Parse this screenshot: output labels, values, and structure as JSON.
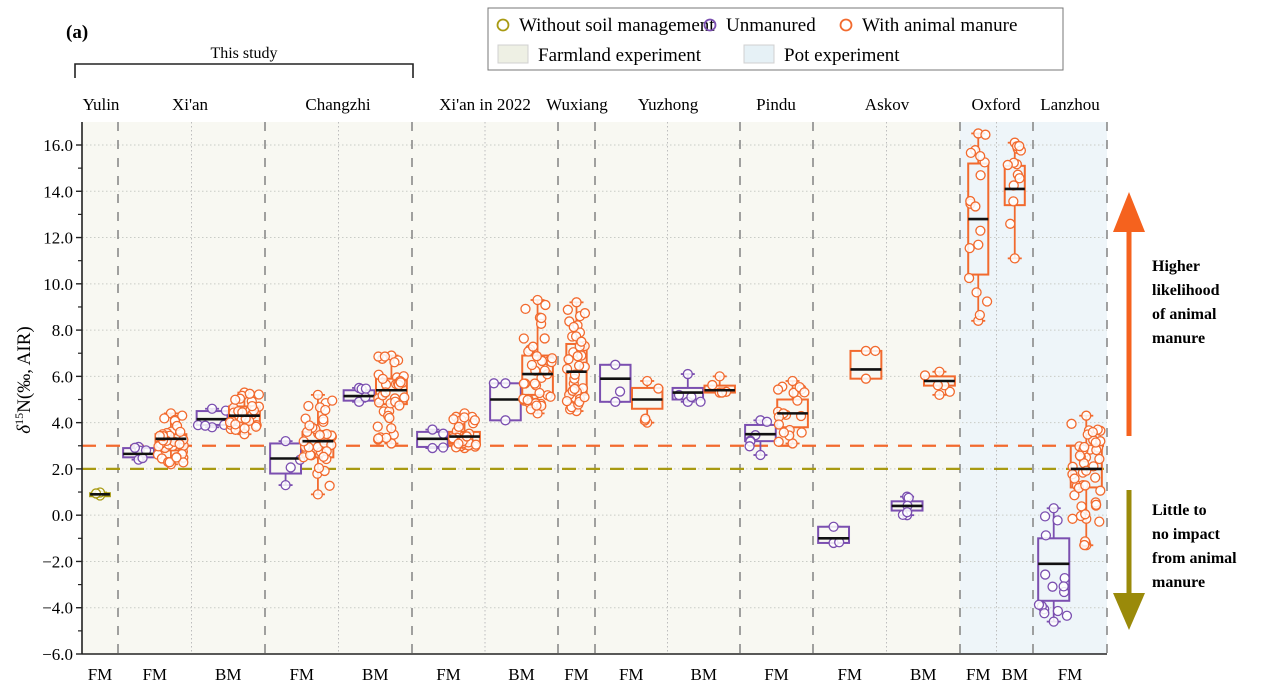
{
  "panel_label": "(a)",
  "bracket_label": "This study",
  "legend": {
    "markers": [
      {
        "label": "Without soil management",
        "color": "#a89a12"
      },
      {
        "label": "Unmanured",
        "color": "#7b4fb0"
      },
      {
        "label": "With animal manure",
        "color": "#f26a2e"
      }
    ],
    "areas": [
      {
        "label": "Farmland experiment",
        "color": "#eef0e4"
      },
      {
        "label": "Pot experiment",
        "color": "#e6f1f6"
      }
    ]
  },
  "annotations": {
    "up": [
      "Higher",
      "likelihood",
      "of animal",
      "manure"
    ],
    "down": [
      "Little to",
      "no impact",
      "from animal",
      "manure"
    ],
    "up_color": "#f5621e",
    "down_color": "#9a8a0a"
  },
  "chart_data": {
    "type": "box",
    "title": "",
    "xlabel": "",
    "ylabel": "δ15N(‰, AIR)",
    "ylim": [
      -6.0,
      17.0
    ],
    "yticks": [
      "16.0",
      "14.0",
      "12.0",
      "10.0",
      "8.0",
      "6.0",
      "4.0",
      "2.0",
      "0.0",
      "−2.0",
      "−4.0",
      "−6.0"
    ],
    "ytick_values": [
      16,
      14,
      12,
      10,
      8,
      6,
      4,
      2,
      0,
      -2,
      -4,
      -6
    ],
    "reference_lines": [
      {
        "name": "manure-threshold",
        "value": 3.0,
        "color": "#f26a2e"
      },
      {
        "name": "soil-threshold",
        "value": 2.0,
        "color": "#a89a12"
      }
    ],
    "sites": [
      {
        "name": "Yulin",
        "experiment": "Farmland",
        "groups": [
          "FM"
        ]
      },
      {
        "name": "Xi'an",
        "experiment": "Farmland",
        "groups": [
          "FM",
          "BM"
        ]
      },
      {
        "name": "Changzhi",
        "experiment": "Farmland",
        "groups": [
          "FM",
          "BM"
        ]
      },
      {
        "name": "Xi'an in 2022",
        "experiment": "Farmland",
        "groups": [
          "FM",
          "BM"
        ]
      },
      {
        "name": "Wuxiang",
        "experiment": "Farmland",
        "groups": [
          "FM"
        ]
      },
      {
        "name": "Yuzhong",
        "experiment": "Farmland",
        "groups": [
          "FM",
          "BM"
        ]
      },
      {
        "name": "Pindu",
        "experiment": "Farmland",
        "groups": [
          "FM"
        ]
      },
      {
        "name": "Askov",
        "experiment": "Farmland",
        "groups": [
          "FM",
          "BM"
        ]
      },
      {
        "name": "Oxford",
        "experiment": "Pot",
        "groups": [
          "FM",
          "BM"
        ]
      },
      {
        "name": "Lanzhou",
        "experiment": "Pot",
        "groups": [
          "FM"
        ]
      }
    ],
    "boxes": [
      {
        "site": "Yulin",
        "group": "FM",
        "treatment": "Without soil management",
        "min": 0.85,
        "q1": 0.82,
        "median": 0.9,
        "q3": 0.95,
        "max": 0.98,
        "n": 3
      },
      {
        "site": "Xi'an",
        "group": "FM",
        "treatment": "Unmanured",
        "min": 2.4,
        "q1": 2.5,
        "median": 2.65,
        "q3": 2.9,
        "max": 2.95,
        "n": 6
      },
      {
        "site": "Xi'an",
        "group": "FM",
        "treatment": "With animal manure",
        "min": 2.2,
        "q1": 2.8,
        "median": 3.3,
        "q3": 3.5,
        "max": 4.4,
        "n": 36
      },
      {
        "site": "Xi'an",
        "group": "BM",
        "treatment": "Unmanured",
        "min": 3.8,
        "q1": 3.9,
        "median": 4.15,
        "q3": 4.5,
        "max": 4.6,
        "n": 6
      },
      {
        "site": "Xi'an",
        "group": "BM",
        "treatment": "With animal manure",
        "min": 3.5,
        "q1": 3.95,
        "median": 4.3,
        "q3": 4.7,
        "max": 5.3,
        "n": 32
      },
      {
        "site": "Changzhi",
        "group": "FM",
        "treatment": "Unmanured",
        "min": 1.3,
        "q1": 1.8,
        "median": 2.45,
        "q3": 3.1,
        "max": 3.2,
        "n": 4
      },
      {
        "site": "Changzhi",
        "group": "FM",
        "treatment": "With animal manure",
        "min": 0.9,
        "q1": 2.5,
        "median": 3.2,
        "q3": 3.6,
        "max": 5.2,
        "n": 38
      },
      {
        "site": "Changzhi",
        "group": "BM",
        "treatment": "Unmanured",
        "min": 4.9,
        "q1": 4.95,
        "median": 5.15,
        "q3": 5.4,
        "max": 5.5,
        "n": 5
      },
      {
        "site": "Changzhi",
        "group": "BM",
        "treatment": "With animal manure",
        "min": 3.1,
        "q1": 4.8,
        "median": 5.4,
        "q3": 5.9,
        "max": 6.9,
        "n": 38
      },
      {
        "site": "Xi'an in 2022",
        "group": "FM",
        "treatment": "Unmanured",
        "min": 2.9,
        "q1": 2.95,
        "median": 3.3,
        "q3": 3.6,
        "max": 3.7,
        "n": 4
      },
      {
        "site": "Xi'an in 2022",
        "group": "FM",
        "treatment": "With animal manure",
        "min": 2.9,
        "q1": 3.1,
        "median": 3.4,
        "q3": 3.6,
        "max": 4.4,
        "n": 32
      },
      {
        "site": "Xi'an in 2022",
        "group": "BM",
        "treatment": "Unmanured",
        "min": 4.1,
        "q1": 4.1,
        "median": 5.0,
        "q3": 5.7,
        "max": 5.7,
        "n": 3
      },
      {
        "site": "Xi'an in 2022",
        "group": "BM",
        "treatment": "With animal manure",
        "min": 4.4,
        "q1": 5.2,
        "median": 6.1,
        "q3": 6.9,
        "max": 9.3,
        "n": 42
      },
      {
        "site": "Wuxiang",
        "group": "FM",
        "treatment": "With animal manure",
        "min": 4.5,
        "q1": 5.2,
        "median": 6.2,
        "q3": 7.4,
        "max": 9.2,
        "n": 40
      },
      {
        "site": "Yuzhong",
        "group": "FM",
        "treatment": "Unmanured",
        "min": 4.9,
        "q1": 4.9,
        "median": 5.9,
        "q3": 6.5,
        "max": 6.5,
        "n": 3
      },
      {
        "site": "Yuzhong",
        "group": "FM",
        "treatment": "With animal manure",
        "min": 4.0,
        "q1": 4.6,
        "median": 5.0,
        "q3": 5.5,
        "max": 5.8,
        "n": 5
      },
      {
        "site": "Yuzhong",
        "group": "BM",
        "treatment": "Unmanured",
        "min": 4.9,
        "q1": 5.0,
        "median": 5.3,
        "q3": 5.5,
        "max": 6.1,
        "n": 5
      },
      {
        "site": "Yuzhong",
        "group": "BM",
        "treatment": "With animal manure",
        "min": 5.3,
        "q1": 5.3,
        "median": 5.4,
        "q3": 5.6,
        "max": 6.0,
        "n": 5
      },
      {
        "site": "Pindu",
        "group": "FM",
        "treatment": "Unmanured",
        "min": 2.6,
        "q1": 3.2,
        "median": 3.5,
        "q3": 3.9,
        "max": 4.1,
        "n": 7
      },
      {
        "site": "Pindu",
        "group": "FM",
        "treatment": "With animal manure",
        "min": 3.1,
        "q1": 3.8,
        "median": 4.4,
        "q3": 5.0,
        "max": 5.8,
        "n": 20
      },
      {
        "site": "Askov",
        "group": "FM",
        "treatment": "Unmanured",
        "min": -1.2,
        "q1": -1.2,
        "median": -1.0,
        "q3": -0.5,
        "max": -0.5,
        "n": 3
      },
      {
        "site": "Askov",
        "group": "FM",
        "treatment": "With animal manure",
        "min": 5.9,
        "q1": 5.9,
        "median": 6.3,
        "q3": 7.1,
        "max": 7.1,
        "n": 3
      },
      {
        "site": "Askov",
        "group": "BM",
        "treatment": "Unmanured",
        "min": 0.0,
        "q1": 0.2,
        "median": 0.4,
        "q3": 0.6,
        "max": 0.8,
        "n": 6
      },
      {
        "site": "Askov",
        "group": "BM",
        "treatment": "With animal manure",
        "min": 5.2,
        "q1": 5.6,
        "median": 5.8,
        "q3": 6.0,
        "max": 6.2,
        "n": 6
      },
      {
        "site": "Oxford",
        "group": "FM",
        "treatment": "With animal manure",
        "min": 8.4,
        "q1": 10.4,
        "median": 12.8,
        "q3": 15.2,
        "max": 16.5,
        "n": 18
      },
      {
        "site": "Oxford",
        "group": "BM",
        "treatment": "With animal manure",
        "min": 11.1,
        "q1": 13.4,
        "median": 14.1,
        "q3": 15.1,
        "max": 16.1,
        "n": 14
      },
      {
        "site": "Lanzhou",
        "group": "FM",
        "treatment": "Unmanured",
        "min": -4.6,
        "q1": -3.7,
        "median": -2.1,
        "q3": -1.0,
        "max": 0.3,
        "n": 16
      },
      {
        "site": "Lanzhou",
        "group": "FM",
        "treatment": "With animal manure",
        "min": -1.3,
        "q1": 1.2,
        "median": 2.0,
        "q3": 3.0,
        "max": 4.3,
        "n": 48
      }
    ]
  }
}
